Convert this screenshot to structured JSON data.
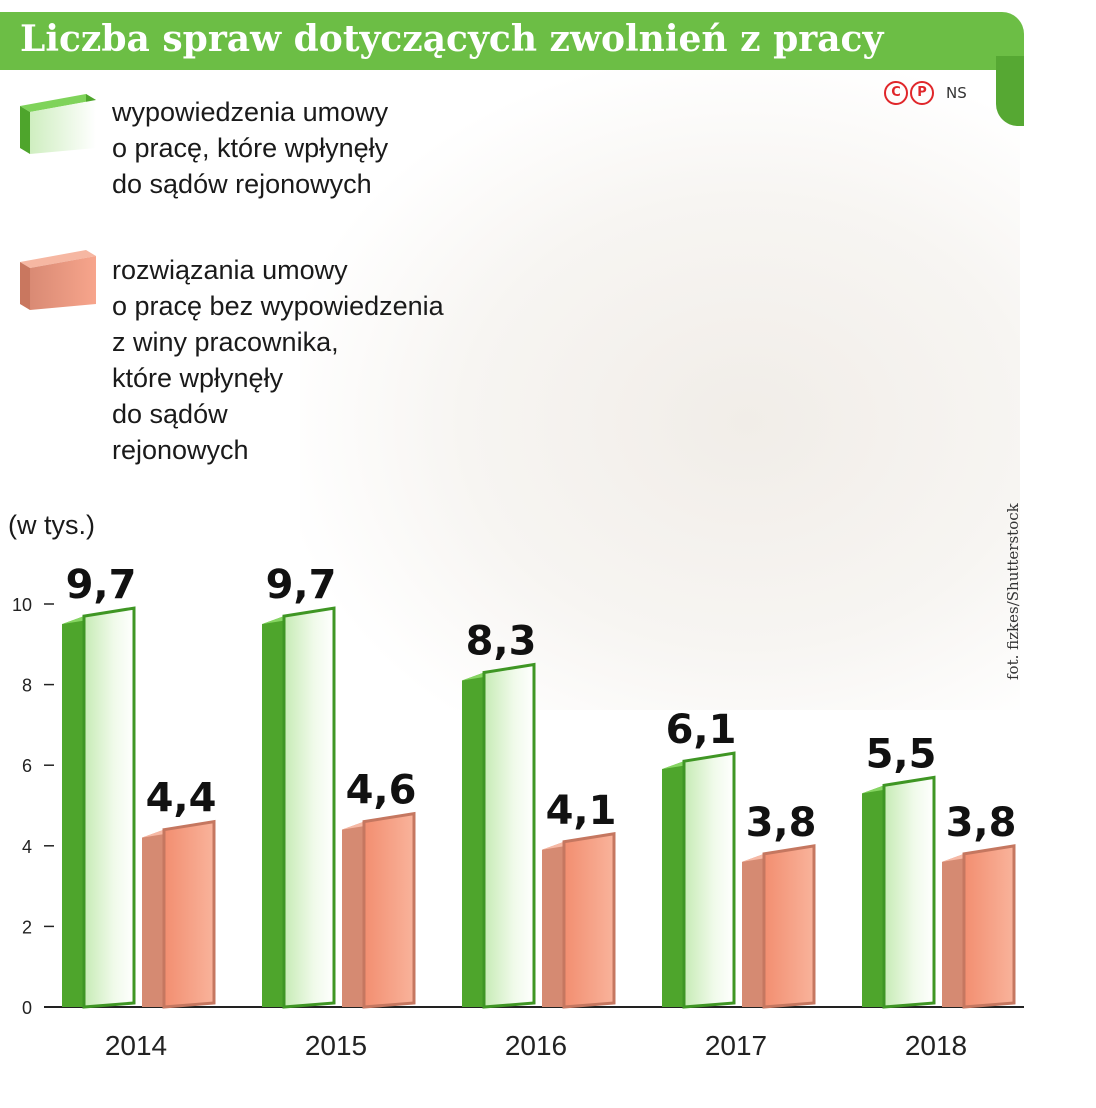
{
  "title": "Liczba spraw dotyczących zwolnień z pracy",
  "copyright": {
    "symbols": [
      "C",
      "P"
    ],
    "agency": "NS"
  },
  "photo_credit": "fot. fizkes/Shutterstock",
  "legend": [
    {
      "lines": [
        "wypowiedzenia umowy",
        "o pracę, które wpłynęły",
        "do sądów rejonowych"
      ],
      "color": "#6cbe45"
    },
    {
      "lines": [
        "rozwiązania umowy",
        "o pracę bez wypowiedzenia",
        "z winy pracownika,",
        "które wpłynęły",
        "do sądów",
        "rejonowych"
      ],
      "color": "#f0957a"
    }
  ],
  "unit_label": "(w tys.)",
  "chart_data": {
    "type": "bar",
    "categories": [
      "2014",
      "2015",
      "2016",
      "2017",
      "2018"
    ],
    "series": [
      {
        "values": [
          9.7,
          9.7,
          8.3,
          6.1,
          5.5
        ],
        "labels": [
          "9,7",
          "9,7",
          "8,3",
          "6,1",
          "5,5"
        ],
        "color": "#6cbe45"
      },
      {
        "values": [
          4.4,
          4.6,
          4.1,
          3.8,
          3.8
        ],
        "labels": [
          "4,4",
          "4,6",
          "4,1",
          "3,8",
          "3,8"
        ],
        "color": "#f0957a"
      }
    ],
    "yticks": [
      0,
      2,
      4,
      6,
      8,
      10
    ],
    "ylim": [
      0,
      10
    ],
    "xlabel": "",
    "ylabel": "",
    "grid": false,
    "legend_placement": "top-left"
  }
}
